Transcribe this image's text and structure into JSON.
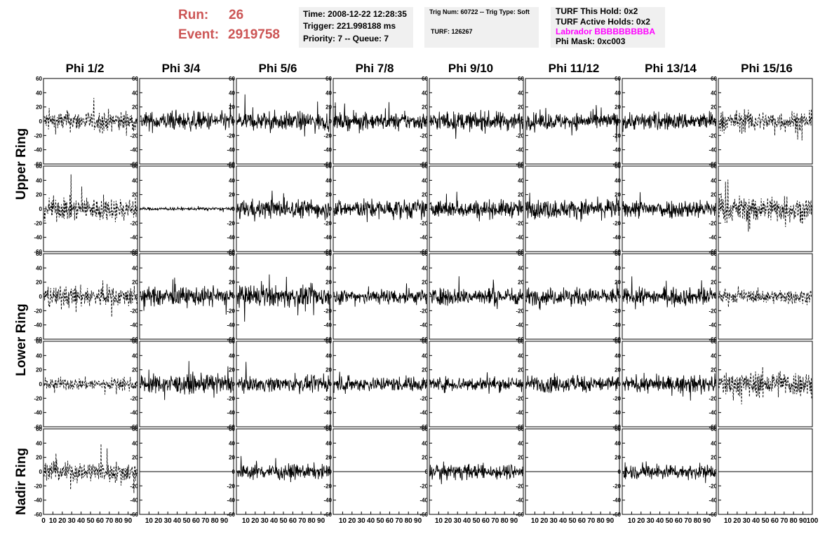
{
  "header": {
    "run_label": "Run:",
    "run_value": "26",
    "event_label": "Event:",
    "event_value": "2919758",
    "time": "Time: 2008-12-22 12:28:35",
    "trigger": "Trigger: 221.998188 ms",
    "priority": "Priority: 7 -- Queue: 7",
    "trig_num": "Trig Num: 60722 -- Trig Type: Soft",
    "turf": "TURF: 126267",
    "turf_hold": "TURF This Hold: 0x2",
    "turf_active": "TURF Active Holds: 0x2",
    "labrador": "Labrador BBBBBBBBBA",
    "phi_mask": "Phi Mask: 0xc003"
  },
  "colors": {
    "run_text": "#cc5555",
    "labrador_text": "#ff00ff",
    "panel_bg": "#f0f0f0"
  },
  "columns": [
    "Phi 1/2",
    "Phi 3/4",
    "Phi 5/6",
    "Phi 7/8",
    "Phi 9/10",
    "Phi 11/12",
    "Phi 13/14",
    "Phi 15/16"
  ],
  "rings": [
    {
      "label": "Upper Ring",
      "rows": 2
    },
    {
      "label": "Lower Ring",
      "rows": 2
    },
    {
      "label": "Nadir Ring",
      "rows": 1
    }
  ],
  "chart_data": {
    "type": "line",
    "layout": "grid of 5 rows x 8 columns of waveform panels",
    "ylim": [
      -60,
      60
    ],
    "y_ticks": [
      -60,
      -40,
      -20,
      0,
      20,
      40,
      60
    ],
    "xlim": [
      0,
      100
    ],
    "x_tick_labels": [
      "0",
      "10",
      "20",
      "30",
      "40",
      "50",
      "60",
      "70",
      "80",
      "90",
      "100"
    ],
    "panels": [
      [
        {
          "style": "dashed",
          "amp": 20
        },
        {
          "style": "solid",
          "amp": 18
        },
        {
          "style": "solid",
          "amp": 18
        },
        {
          "style": "solid",
          "amp": 16
        },
        {
          "style": "solid",
          "amp": 18
        },
        {
          "style": "solid",
          "amp": 16
        },
        {
          "style": "solid",
          "amp": 17
        },
        {
          "style": "dashed",
          "amp": 20
        }
      ],
      [
        {
          "style": "dashed",
          "amp": 22
        },
        {
          "style": "solid",
          "amp": 3
        },
        {
          "style": "solid",
          "amp": 18
        },
        {
          "style": "solid",
          "amp": 18
        },
        {
          "style": "solid",
          "amp": 17
        },
        {
          "style": "solid",
          "amp": 18
        },
        {
          "style": "solid",
          "amp": 18
        },
        {
          "style": "dashed",
          "amp": 25
        }
      ],
      [
        {
          "style": "dashed",
          "amp": 20
        },
        {
          "style": "solid",
          "amp": 18
        },
        {
          "style": "solid",
          "amp": 20
        },
        {
          "style": "solid",
          "amp": 15
        },
        {
          "style": "solid",
          "amp": 17
        },
        {
          "style": "solid",
          "amp": 16
        },
        {
          "style": "solid",
          "amp": 16
        },
        {
          "style": "dashed",
          "amp": 13
        }
      ],
      [
        {
          "style": "dashed",
          "amp": 12
        },
        {
          "style": "solid",
          "amp": 18
        },
        {
          "style": "solid",
          "amp": 14
        },
        {
          "style": "solid",
          "amp": 14
        },
        {
          "style": "solid",
          "amp": 14
        },
        {
          "style": "solid",
          "amp": 16
        },
        {
          "style": "solid",
          "amp": 15
        },
        {
          "style": "dashed",
          "amp": 25
        }
      ],
      [
        {
          "style": "dashed",
          "amp": 20
        },
        {
          "style": "flat",
          "amp": 0
        },
        {
          "style": "solid",
          "amp": 14
        },
        {
          "style": "flat",
          "amp": 0
        },
        {
          "style": "solid",
          "amp": 14
        },
        {
          "style": "flat",
          "amp": 0
        },
        {
          "style": "solid",
          "amp": 14
        },
        {
          "style": "flat",
          "amp": 0
        }
      ]
    ]
  }
}
